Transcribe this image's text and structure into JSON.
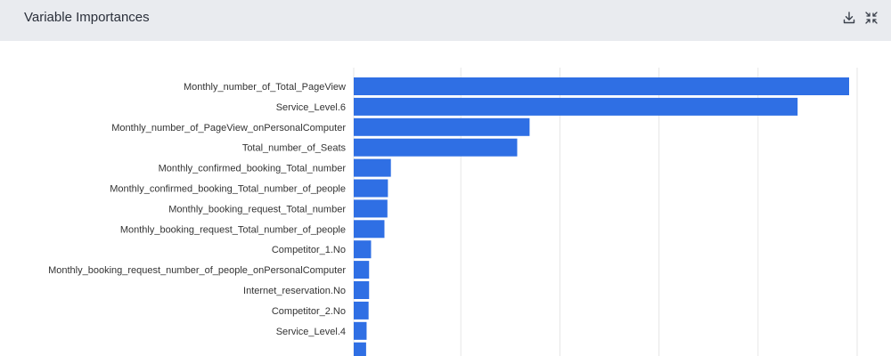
{
  "header": {
    "title": "Variable Importances",
    "download_icon": "download-icon",
    "collapse_icon": "collapse-icon"
  },
  "colors": {
    "bar": "#2f6fe4",
    "grid": "#e6e6e6",
    "header_bg": "#e9ebef"
  },
  "chart_data": {
    "type": "bar",
    "orientation": "horizontal",
    "title": "",
    "xlabel": "",
    "ylabel": "",
    "xlim": [
      0,
      1.02
    ],
    "grid": true,
    "categories": [
      "Monthly_number_of_Total_PageView",
      "Service_Level.6",
      "Monthly_number_of_PageView_onPersonalComputer",
      "Total_number_of_Seats",
      "Monthly_confirmed_booking_Total_number",
      "Monthly_confirmed_booking_Total_number_of_people",
      "Monthly_booking_request_Total_number",
      "Monthly_booking_request_Total_number_of_people",
      "Competitor_1.No",
      "Monthly_booking_request_number_of_people_onPersonalComputer",
      "Internet_reservation.No",
      "Competitor_2.No",
      "Service_Level.4",
      ""
    ],
    "values": [
      1.0,
      0.896,
      0.355,
      0.33,
      0.075,
      0.069,
      0.068,
      0.062,
      0.035,
      0.031,
      0.031,
      0.03,
      0.026,
      0.025
    ]
  }
}
